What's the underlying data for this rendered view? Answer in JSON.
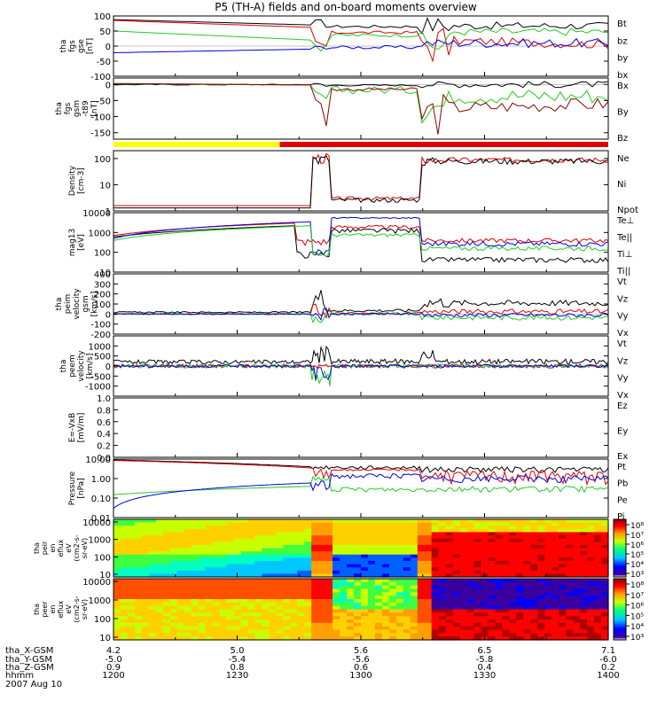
{
  "title": "P5 (TH-A) fields and on-board moments overview",
  "colors": {
    "black": "#000000",
    "red": "#e00000",
    "green": "#22cc22",
    "blue": "#0000dd",
    "darkred": "#8b0000",
    "yellow": "#ffff00"
  },
  "chart_data": [
    {
      "id": "fgs_gse",
      "type": "line",
      "ylabel": [
        "tha",
        "fgs",
        "gse",
        "[nT]"
      ],
      "ylim": [
        -100,
        100
      ],
      "ticks": [
        "100",
        "50",
        "0",
        "-50",
        "-100"
      ],
      "tick_values": [
        100,
        50,
        0,
        -50,
        -100
      ],
      "legend": [
        {
          "label": "Bt",
          "color": "black"
        },
        {
          "label": "bz",
          "color": "red"
        },
        {
          "label": "by",
          "color": "green"
        },
        {
          "label": "bx",
          "color": "blue"
        }
      ]
    },
    {
      "id": "fgs_gsm",
      "type": "line",
      "ylabel": [
        "tha",
        "fgs",
        "gsm",
        "-t89",
        "[nT]"
      ],
      "ylim": [
        -170,
        20
      ],
      "ticks": [
        "0",
        "-50",
        "-100",
        "-150"
      ],
      "tick_values": [
        0,
        -50,
        -100,
        -150
      ],
      "legend": [
        {
          "label": "Bx",
          "color": "black"
        },
        {
          "label": "By",
          "color": "green"
        },
        {
          "label": "Bz",
          "color": "darkred"
        }
      ]
    },
    {
      "id": "density",
      "type": "line",
      "scale": "log",
      "ylabel": [
        "Density",
        "[cm-3]"
      ],
      "ylim": [
        1,
        200
      ],
      "ticks": [
        "100",
        "10",
        "1"
      ],
      "tick_values": [
        100,
        10,
        1
      ],
      "legend": [
        {
          "label": "Ne",
          "color": "red"
        },
        {
          "label": "Ni",
          "color": "black"
        },
        {
          "label": "Npot",
          "color": "blue"
        }
      ]
    },
    {
      "id": "temperature",
      "type": "line",
      "scale": "log",
      "ylabel": [
        "mag13",
        "[eV]"
      ],
      "ylim": [
        10,
        10000
      ],
      "ticks": [
        "10000",
        "1000",
        "100",
        "10"
      ],
      "tick_values": [
        10000,
        1000,
        100,
        10
      ],
      "legend": [
        {
          "label": "Te⊥",
          "color": "red"
        },
        {
          "label": "Te||",
          "color": "black"
        },
        {
          "label": "Ti⊥",
          "color": "blue"
        },
        {
          "label": "Ti||",
          "color": "green"
        }
      ]
    },
    {
      "id": "peim_velocity",
      "type": "line",
      "ylabel": [
        "tha",
        "peim",
        "velocity",
        "gsm",
        "[km/s]"
      ],
      "ylim": [
        -200,
        400
      ],
      "ticks": [
        "400",
        "300",
        "200",
        "100",
        "0",
        "-100",
        "-200"
      ],
      "tick_values": [
        400,
        300,
        200,
        100,
        0,
        -100,
        -200
      ],
      "legend": [
        {
          "label": "Vt",
          "color": "black"
        },
        {
          "label": "Vz",
          "color": "red"
        },
        {
          "label": "Vy",
          "color": "green"
        },
        {
          "label": "Vx",
          "color": "blue"
        }
      ]
    },
    {
      "id": "peem_velocity",
      "type": "line",
      "ylabel": [
        "tha",
        "peem",
        "velocity",
        "[km/s]"
      ],
      "ylim": [
        -1500,
        1500
      ],
      "ticks": [
        "1000",
        "500",
        "0",
        "-500",
        "-1000"
      ],
      "tick_values": [
        1000,
        500,
        0,
        -500,
        -1000
      ],
      "legend": [
        {
          "label": "Vt",
          "color": "black"
        },
        {
          "label": "Vz",
          "color": "red"
        },
        {
          "label": "Vy",
          "color": "green"
        },
        {
          "label": "Vx",
          "color": "blue"
        }
      ]
    },
    {
      "id": "efield",
      "type": "line",
      "ylabel": [
        "E=-VxB",
        "[mV/m]"
      ],
      "ylim": [
        0,
        1
      ],
      "ticks": [
        "1.0",
        "0.8",
        "0.6",
        "0.4",
        "0.2",
        "0.0"
      ],
      "tick_values": [
        1,
        0.8,
        0.6,
        0.4,
        0.2,
        0
      ],
      "legend": [
        {
          "label": "Ez",
          "color": "red"
        },
        {
          "label": "Ey",
          "color": "green"
        },
        {
          "label": "Ex",
          "color": "blue"
        }
      ]
    },
    {
      "id": "pressure",
      "type": "line",
      "scale": "log",
      "ylabel": [
        "Pressure",
        "[nPa]"
      ],
      "ylim": [
        0.01,
        10
      ],
      "ticks": [
        "10.00",
        "1.00",
        "0.10",
        "0.01"
      ],
      "tick_values": [
        10,
        1,
        0.1,
        0.01
      ],
      "legend": [
        {
          "label": "Pt",
          "color": "black"
        },
        {
          "label": "Pb",
          "color": "red"
        },
        {
          "label": "Pe",
          "color": "green"
        },
        {
          "label": "Pi",
          "color": "blue"
        }
      ]
    },
    {
      "id": "peir_spectrogram",
      "type": "heatmap",
      "scale": "log",
      "ylabel": [
        "tha",
        "peir",
        "en",
        "eflux",
        "eV",
        "(cm2-s-",
        "sr-eV)"
      ],
      "ylim": [
        10,
        10000
      ],
      "ticks": [
        "10000",
        "1000",
        "100",
        "10"
      ],
      "tick_values": [
        10000,
        1000,
        100,
        10
      ],
      "colorbar_ticks": [
        "10⁸",
        "10⁷",
        "10⁶",
        "10⁵",
        "10⁴",
        "10³"
      ]
    },
    {
      "id": "peer_spectrogram",
      "type": "heatmap",
      "scale": "log",
      "ylabel": [
        "tha",
        "peer",
        "en",
        "eflux",
        "eV",
        "(cm2-s-",
        "sr-eV)"
      ],
      "ylim": [
        10,
        10000
      ],
      "ticks": [
        "10000",
        "1000",
        "100",
        "10"
      ],
      "tick_values": [
        10000,
        1000,
        100,
        10
      ],
      "colorbar_ticks": [
        "10⁸",
        "10⁷",
        "10⁶",
        "10⁵",
        "10⁴",
        "10³"
      ]
    }
  ],
  "x_axis": {
    "row_labels": [
      "tha_X-GSM",
      "tha_Y-GSM",
      "tha_Z-GSM",
      "hhmm",
      "2007 Aug 10"
    ],
    "ticks": [
      {
        "x": "4.2",
        "y": "-5.0",
        "z": "0.9",
        "t": "1200"
      },
      {
        "x": "5.0",
        "y": "-5.4",
        "z": "0.8",
        "t": "1230"
      },
      {
        "x": "5.6",
        "y": "-5.6",
        "z": "0.6",
        "t": "1300"
      },
      {
        "x": "6.5",
        "y": "-5.8",
        "z": "0.4",
        "t": "1330"
      },
      {
        "x": "7.1",
        "y": "-6.0",
        "z": "0.2",
        "t": "1400"
      }
    ],
    "t_range_min": [
      720,
      840
    ]
  }
}
